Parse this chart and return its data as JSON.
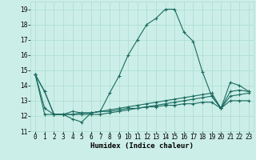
{
  "xlabel": "Humidex (Indice chaleur)",
  "background_color": "#cceee8",
  "grid_color": "#aaddcc",
  "line_color": "#1a6b60",
  "x_values": [
    0,
    1,
    2,
    3,
    4,
    5,
    6,
    7,
    8,
    9,
    10,
    11,
    12,
    13,
    14,
    15,
    16,
    17,
    18,
    19,
    20,
    21,
    22,
    23
  ],
  "series": [
    [
      14.7,
      13.6,
      12.1,
      12.1,
      11.8,
      11.6,
      12.2,
      12.3,
      13.5,
      14.6,
      16.0,
      17.0,
      18.0,
      18.4,
      19.0,
      19.0,
      17.5,
      16.9,
      14.9,
      13.3,
      12.5,
      14.2,
      14.0,
      13.6
    ],
    [
      14.7,
      13.6,
      12.1,
      12.1,
      12.3,
      12.2,
      12.2,
      12.3,
      12.4,
      12.5,
      12.6,
      12.7,
      12.8,
      12.9,
      13.0,
      13.1,
      13.2,
      13.3,
      13.4,
      13.5,
      12.5,
      13.6,
      13.7,
      13.6
    ],
    [
      14.7,
      12.1,
      12.1,
      12.1,
      12.1,
      12.1,
      12.1,
      12.1,
      12.2,
      12.3,
      12.4,
      12.5,
      12.6,
      12.7,
      12.8,
      12.9,
      13.0,
      13.1,
      13.2,
      13.3,
      12.5,
      13.3,
      13.4,
      13.5
    ],
    [
      14.7,
      12.5,
      12.1,
      12.1,
      12.1,
      12.2,
      12.2,
      12.3,
      12.3,
      12.4,
      12.5,
      12.5,
      12.6,
      12.6,
      12.7,
      12.7,
      12.8,
      12.8,
      12.9,
      12.9,
      12.5,
      13.0,
      13.0,
      13.0
    ]
  ],
  "ylim": [
    11,
    19.5
  ],
  "xlim": [
    -0.5,
    23.5
  ],
  "yticks": [
    11,
    12,
    13,
    14,
    15,
    16,
    17,
    18,
    19
  ],
  "xtick_labels": [
    "0",
    "1",
    "2",
    "3",
    "4",
    "5",
    "6",
    "7",
    "8",
    "9",
    "10",
    "11",
    "12",
    "13",
    "14",
    "15",
    "16",
    "17",
    "18",
    "19",
    "20",
    "21",
    "22",
    "23"
  ],
  "marker": "+",
  "markersize": 3,
  "linewidth": 0.8,
  "tick_fontsize": 5.5,
  "xlabel_fontsize": 6.5
}
